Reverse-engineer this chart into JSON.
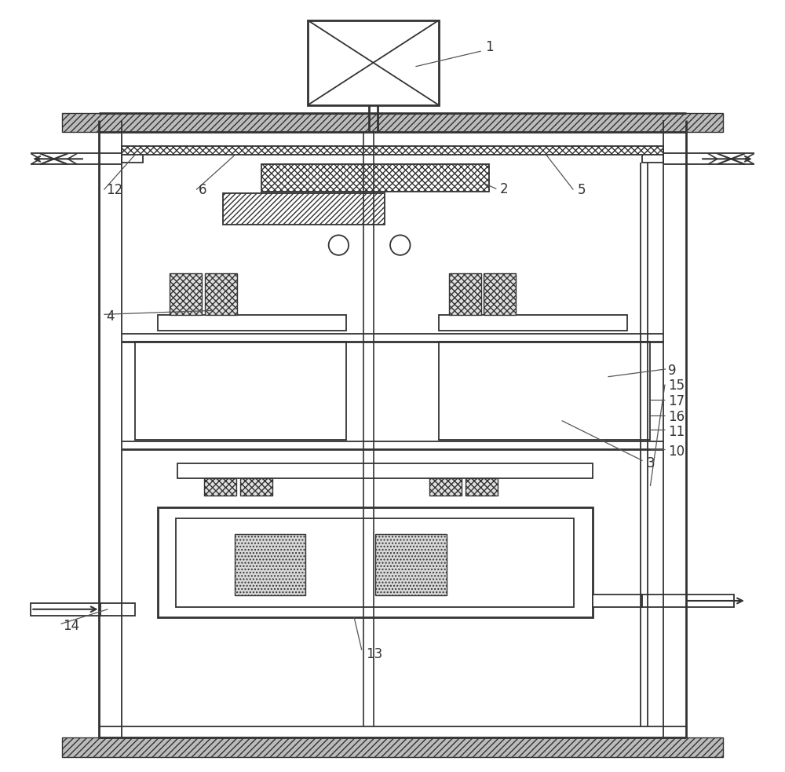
{
  "bg": "#ffffff",
  "lc": "#333333",
  "lw_outer": 2.0,
  "lw_inner": 1.3,
  "label_fs": 12
}
